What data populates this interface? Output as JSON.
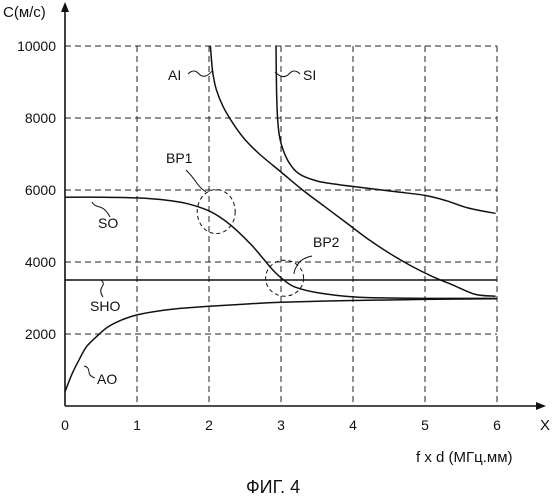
{
  "chart_data": {
    "type": "line",
    "y_axis_title": "C(м/с)",
    "x_axis_symbol": "X",
    "x_axis_title": "f x d (МГц.мм)",
    "caption": "ФИГ. 4",
    "xlim": [
      0,
      6
    ],
    "ylim": [
      0,
      10000
    ],
    "x_ticks": [
      "0",
      "1",
      "2",
      "3",
      "4",
      "5",
      "6"
    ],
    "y_ticks": [
      "2000",
      "4000",
      "6000",
      "8000",
      "10000"
    ],
    "grid": true,
    "series": [
      {
        "name": "AI",
        "x": [
          2.02,
          2.05,
          2.1,
          2.2,
          2.35,
          2.5,
          2.7,
          3.0,
          3.3,
          3.6,
          3.9,
          4.2,
          4.5,
          4.8,
          5.1,
          5.4,
          5.7,
          5.98
        ],
        "y": [
          10000,
          9300,
          8800,
          8300,
          7800,
          7400,
          7000,
          6500,
          6000,
          5550,
          5100,
          4650,
          4250,
          3900,
          3600,
          3350,
          3100,
          3050
        ]
      },
      {
        "name": "SI",
        "x": [
          2.93,
          2.94,
          2.96,
          3.0,
          3.1,
          3.25,
          3.5,
          3.8,
          4.2,
          4.6,
          5.0,
          5.3,
          5.6,
          5.98
        ],
        "y": [
          10000,
          8600,
          7800,
          7300,
          6800,
          6450,
          6250,
          6150,
          6050,
          5950,
          5850,
          5700,
          5500,
          5350
        ]
      },
      {
        "name": "SO",
        "x": [
          0,
          0.5,
          1.0,
          1.4,
          1.7,
          2.0,
          2.2,
          2.4,
          2.6,
          2.75,
          2.9,
          3.05,
          3.2,
          3.5,
          4.0,
          4.5,
          5.0,
          5.5,
          6.0
        ],
        "y": [
          5800,
          5800,
          5780,
          5720,
          5620,
          5420,
          5180,
          4850,
          4450,
          4100,
          3750,
          3480,
          3300,
          3150,
          3030,
          3000,
          2990,
          2990,
          2990
        ]
      },
      {
        "name": "SHO",
        "x": [
          0,
          6
        ],
        "y": [
          3500,
          3500
        ]
      },
      {
        "name": "AO",
        "x": [
          0,
          0.1,
          0.2,
          0.3,
          0.45,
          0.6,
          0.8,
          1.0,
          1.3,
          1.6,
          2.0,
          2.5,
          3.0,
          4.0,
          5.0,
          6.0
        ],
        "y": [
          400,
          900,
          1300,
          1650,
          1950,
          2200,
          2400,
          2530,
          2640,
          2710,
          2770,
          2830,
          2880,
          2930,
          2960,
          2980
        ]
      }
    ],
    "annotations": [
      {
        "label": "BP1",
        "x": 2.1,
        "y": 5400
      },
      {
        "label": "BP2",
        "x": 3.05,
        "y": 3550
      }
    ]
  }
}
